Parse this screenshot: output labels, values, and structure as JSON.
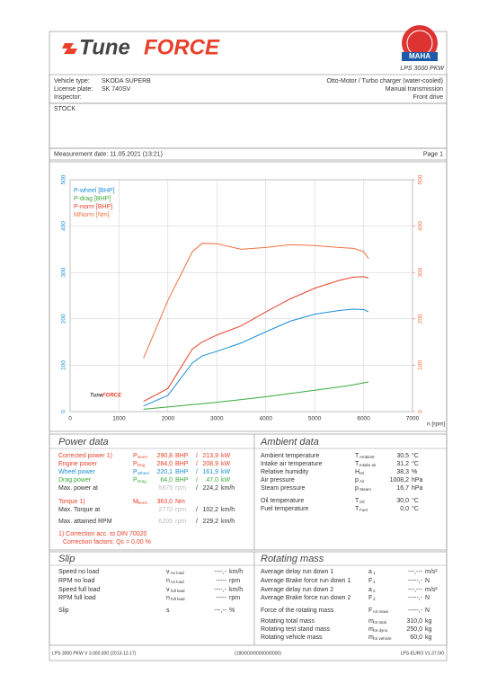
{
  "header": {
    "logo": [
      "Tune",
      "FORCE"
    ],
    "badge": "MAHA",
    "model": "LPS 3000 PKW"
  },
  "vehicle": {
    "left": [
      [
        "Vehicle type:",
        "SKODA SUPERB"
      ],
      [
        "License plate:",
        "SK 740SV"
      ],
      [
        "Inspector:",
        ""
      ]
    ],
    "right": [
      "Otto-Motor / Turbo charger (water-cooled)",
      "Manual transmission",
      "Front drive"
    ],
    "remark": "STOCK",
    "date": "Measurement date: 11.05.2021 (13:21)",
    "page": "Page 1"
  },
  "chart_data": {
    "type": "line",
    "x": [
      1500,
      2000,
      2500,
      2700,
      3000,
      3500,
      4000,
      4500,
      5000,
      5500,
      5800,
      6000,
      6100
    ],
    "series": [
      {
        "name": "P-wheel [BHP]",
        "color": "#1a8fd6",
        "values": [
          12,
          35,
          105,
          120,
          130,
          148,
          172,
          195,
          210,
          218,
          221,
          220,
          215
        ]
      },
      {
        "name": "P-drag [BHP]",
        "color": "#3aa83a",
        "values": [
          5,
          10,
          15,
          17,
          20,
          26,
          32,
          39,
          46,
          53,
          58,
          62,
          64
        ]
      },
      {
        "name": "P-norm [BHP]",
        "color": "#e8402a",
        "values": [
          22,
          50,
          135,
          150,
          165,
          185,
          215,
          243,
          266,
          283,
          290,
          291,
          288
        ]
      },
      {
        "name": "MNorm [Nm]",
        "color": "#f07040",
        "axis": "y2",
        "values": [
          115,
          240,
          345,
          363,
          362,
          350,
          354,
          360,
          358,
          354,
          352,
          345,
          330
        ]
      }
    ],
    "xlim": [
      0,
      7000
    ],
    "xticks": [
      0,
      1000,
      2000,
      3000,
      4000,
      5000,
      6000,
      7000
    ],
    "xlabel": "n [rpm]",
    "ylim": [
      0,
      500
    ],
    "yticks": [
      0,
      100,
      200,
      300,
      400,
      500
    ],
    "y2lim": [
      0,
      500
    ],
    "y2ticks": [
      0,
      100,
      200,
      300,
      400,
      500
    ],
    "grid": true
  },
  "power_data": {
    "title": "Power data",
    "rows": [
      {
        "label": "Corrected power 1)",
        "symbol": "P",
        "sub": "Norm",
        "v1": "290,8",
        "u1": "BHP",
        "sep": "/",
        "v2": "213,9",
        "u2": "kW",
        "color": "#e8402a"
      },
      {
        "label": "Engine power",
        "symbol": "P",
        "sub": "Eng",
        "v1": "284,0",
        "u1": "BHP",
        "sep": "/",
        "v2": "208,9",
        "u2": "kW",
        "color": "#e8402a"
      },
      {
        "label": "Wheel power",
        "symbol": "P",
        "sub": "Wheel",
        "v1": "220,1",
        "u1": "BHP",
        "sep": "/",
        "v2": "161,9",
        "u2": "kW",
        "color": "#1a8fd6"
      },
      {
        "label": "Drag power",
        "symbol": "P",
        "sub": "Drag",
        "v1": "64,0",
        "u1": "BHP",
        "sep": "/",
        "v2": "47,0",
        "u2": "kW",
        "color": "#3aa83a"
      },
      {
        "label": "Max. power at",
        "v1": "5875",
        "u1": "rpm",
        "sep": "/",
        "v2": "224,2",
        "u2": "km/h",
        "faded": true
      },
      {
        "label": "Torque 1)",
        "symbol": "M",
        "sub": "Norm",
        "v1": "363,0",
        "u1": "Nm",
        "color": "#e8402a"
      },
      {
        "label": "Max. Torque at",
        "v1": "2770",
        "u1": "rpm",
        "sep": "/",
        "v2": "102,2",
        "u2": "km/h",
        "faded": true
      },
      {
        "label": "Max. attained RPM",
        "v1": "6205",
        "u1": "rpm",
        "sep": "/",
        "v2": "229,2",
        "u2": "km/h",
        "faded": true
      }
    ],
    "notes": [
      "1) Correction acc. to DIN 70020",
      "Correction factors: Qc = 0,00 %"
    ]
  },
  "ambient_data": {
    "title": "Ambient data",
    "rows": [
      {
        "label": "Ambient temperature",
        "symbol": "T",
        "sub": "Ambient",
        "v1": "30,5",
        "u1": "°C"
      },
      {
        "label": "Intake air temperature",
        "symbol": "T",
        "sub": "Intake air",
        "v1": "31,2",
        "u1": "°C"
      },
      {
        "label": "Relative humidity",
        "symbol": "H",
        "sub": "rel",
        "v1": "38,3",
        "u1": "%"
      },
      {
        "label": "Air pressure",
        "symbol": "p",
        "sub": "Air",
        "v1": "1008,2",
        "u1": "hPa"
      },
      {
        "label": "Steam pressure",
        "symbol": "p",
        "sub": "Steam",
        "v1": "16,7",
        "u1": "hPa"
      },
      {
        "label": "Oil temperature",
        "symbol": "T",
        "sub": "Oil",
        "v1": "30,0",
        "u1": "°C"
      },
      {
        "label": "Fuel temperature",
        "symbol": "T",
        "sub": "Fuel",
        "v1": "0,0",
        "u1": "°C"
      }
    ]
  },
  "slip": {
    "title": "Slip",
    "rows": [
      {
        "label": "Speed no load",
        "symbol": "v",
        "sub": "no load",
        "v1": "----,-",
        "u1": "km/h"
      },
      {
        "label": "RPM no load",
        "symbol": "n",
        "sub": "no load",
        "v1": "-----",
        "u1": "rpm"
      },
      {
        "label": "Speed full load",
        "symbol": "v",
        "sub": "full load",
        "v1": "----,-",
        "u1": "km/h"
      },
      {
        "label": "RPM full load",
        "symbol": "n",
        "sub": "full load",
        "v1": "-----",
        "u1": "rpm"
      },
      {
        "label": "Slip",
        "symbol": "s",
        "v1": "---,--",
        "u1": "%"
      }
    ]
  },
  "rotating_mass": {
    "title": "Rotating mass",
    "rows": [
      {
        "label": "Average delay run down 1",
        "symbol": "a",
        "sub": "1",
        "v1": "---,---",
        "u1": "m/s²"
      },
      {
        "label": "Average Brake force run down 1",
        "symbol": "F",
        "sub": "1",
        "v1": "-----,-",
        "u1": "N"
      },
      {
        "label": "Average delay run down 2",
        "symbol": "a",
        "sub": "2",
        "v1": "---,---",
        "u1": "m/s²"
      },
      {
        "label": "Average Brake force run down 2",
        "symbol": "F",
        "sub": "2",
        "v1": "-----,-",
        "u1": "N"
      },
      {
        "label": "Force of the rotating mass",
        "symbol": "F",
        "sub": "rot mass",
        "v1": "-----,-",
        "u1": "N"
      },
      {
        "label": "Rotating total mass",
        "symbol": "m",
        "sub": "rot total",
        "v1": "310,0",
        "u1": "kg"
      },
      {
        "label": "Rotating test stand mass",
        "symbol": "m",
        "sub": "rot dyno",
        "v1": "250,0",
        "u1": "kg"
      },
      {
        "label": "Rotating vehicle mass",
        "symbol": "m",
        "sub": "rot vehicle",
        "v1": "60,0",
        "u1": "kg"
      }
    ]
  },
  "footer": [
    "LPS 3000 PKW V 3.000.000 (2013-12-17)",
    "(180/000/000000/0000)",
    "LPS-EURO V1.37.0/0"
  ]
}
